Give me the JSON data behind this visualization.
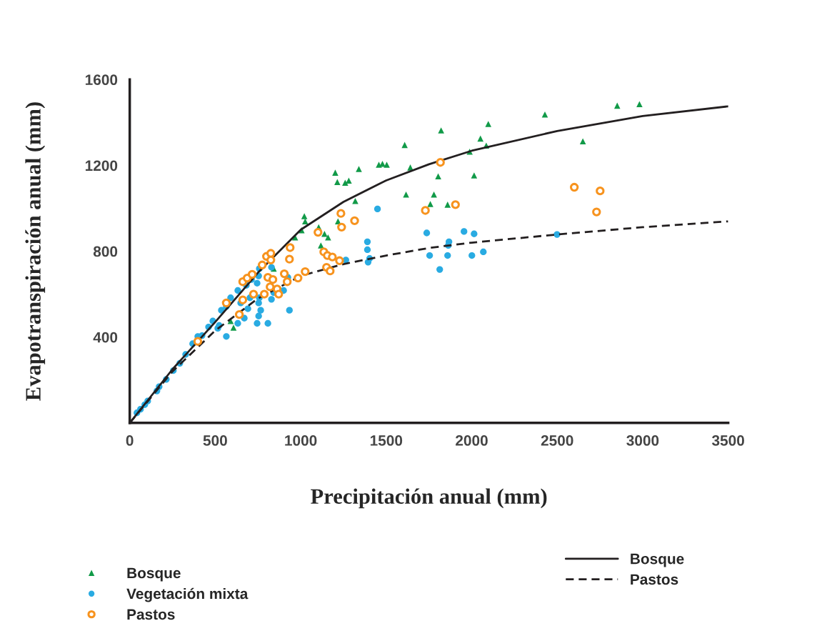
{
  "chart_data": {
    "type": "scatter",
    "xlabel": "Precipitación anual (mm)",
    "ylabel": "Evapotranspiración anual (mm)",
    "xlim": [
      0,
      3500
    ],
    "ylim": [
      0,
      1600
    ],
    "xticks": [
      0,
      500,
      1000,
      1500,
      2000,
      2500,
      3000,
      3500
    ],
    "yticks": [
      400,
      800,
      1200,
      1600
    ],
    "grid": false,
    "legend": "bottom",
    "series": [
      {
        "name": "Bosque",
        "marker": "triangle",
        "color": "#119a48",
        "x": [
          590,
          607,
          842,
          1021,
          1026,
          1005,
          967,
          1105,
          1139,
          1160,
          1118,
          1218,
          1202,
          1214,
          1260,
          1281,
          1340,
          1608,
          1457,
          1478,
          1503,
          1641,
          1804,
          2014,
          1988,
          2085,
          2051,
          1616,
          1779,
          1758,
          1859,
          1319,
          1821,
          2097,
          2428,
          2650,
          2851,
          2981
        ],
        "values": [
          475,
          444,
          719,
          963,
          939,
          898,
          864,
          912,
          881,
          864,
          827,
          939,
          1166,
          1122,
          1119,
          1129,
          1183,
          1295,
          1203,
          1207,
          1203,
          1190,
          1149,
          1153,
          1264,
          1292,
          1325,
          1064,
          1064,
          1020,
          1017,
          1034,
          1363,
          1393,
          1437,
          1312,
          1478,
          1485
        ]
      },
      {
        "name": "Vegetación mixta",
        "marker": "circle",
        "color": "#29abe2",
        "x": [
          42,
          63,
          88,
          105,
          159,
          172,
          214,
          255,
          293,
          327,
          368,
          398,
          423,
          461,
          486,
          523,
          565,
          536,
          565,
          590,
          632,
          649,
          691,
          670,
          632,
          703,
          682,
          712,
          758,
          754,
          745,
          758,
          754,
          766,
          754,
          745,
          808,
          829,
          842,
          829,
          900,
          925,
          934,
          515,
          1449,
          1390,
          1390,
          1403,
          1394,
          1264,
          1737,
          1754,
          1813,
          1867,
          1863,
          1955,
          2014,
          2001,
          2068,
          2499,
          1859
        ],
        "values": [
          47,
          64,
          85,
          102,
          149,
          169,
          203,
          244,
          278,
          319,
          369,
          403,
          407,
          447,
          475,
          454,
          403,
          525,
          542,
          583,
          617,
          559,
          532,
          488,
          464,
          583,
          641,
          668,
          719,
          685,
          651,
          583,
          559,
          525,
          498,
          464,
          464,
          576,
          607,
          725,
          617,
          678,
          525,
          441,
          997,
          844,
          807,
          766,
          749,
          759,
          885,
          780,
          715,
          844,
          827,
          892,
          881,
          780,
          797,
          878,
          780
        ]
      },
      {
        "name": "Pastos",
        "marker": "circle",
        "color": "#f7931e",
        "x": [
          398,
          565,
          641,
          661,
          661,
          724,
          687,
          716,
          775,
          800,
          825,
          825,
          787,
          808,
          837,
          821,
          862,
          871,
          904,
          921,
          934,
          938,
          984,
          1026,
          1101,
          1135,
          1156,
          1185,
          1227,
          1151,
          1172,
          1235,
          1239,
          1315,
          1729,
          1817,
          1905,
          2600,
          2751,
          2730
        ],
        "values": [
          380,
          559,
          505,
          658,
          573,
          600,
          675,
          692,
          736,
          776,
          790,
          759,
          600,
          678,
          668,
          634,
          624,
          600,
          695,
          658,
          763,
          817,
          675,
          705,
          888,
          797,
          780,
          773,
          756,
          725,
          708,
          976,
          912,
          942,
          990,
          1214,
          1017,
          1098,
          1081,
          983
        ]
      },
      {
        "name": "Bosque",
        "type": "line",
        "line_style": "solid",
        "color": "#231f20",
        "x": [
          0,
          250,
          500,
          750,
          1000,
          1250,
          1500,
          1750,
          2000,
          2500,
          3000,
          3500
        ],
        "values": [
          0,
          250,
          470,
          700,
          900,
          1030,
          1130,
          1205,
          1268,
          1360,
          1430,
          1475
        ]
      },
      {
        "name": "Pastos",
        "type": "line",
        "line_style": "dashed",
        "color": "#231f20",
        "x": [
          0,
          250,
          500,
          750,
          1000,
          1250,
          1500,
          1750,
          2000,
          2500,
          3000,
          3500
        ],
        "values": [
          0,
          240,
          430,
          580,
          685,
          740,
          780,
          815,
          840,
          878,
          912,
          939
        ]
      }
    ]
  }
}
